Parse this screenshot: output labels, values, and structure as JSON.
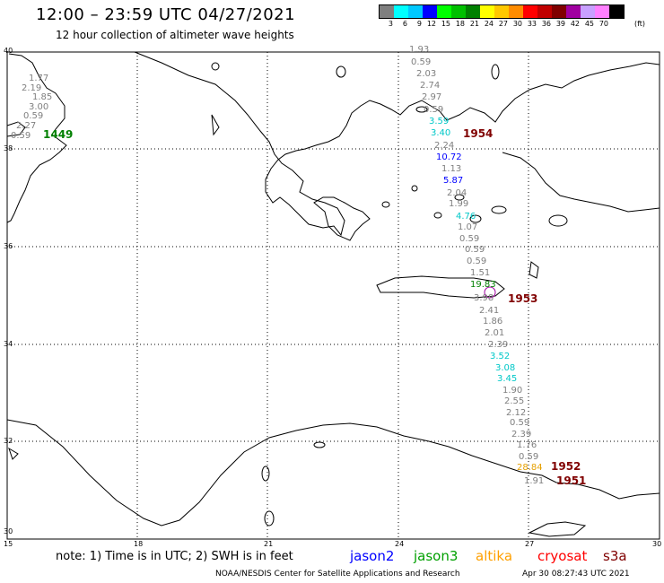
{
  "title": "12:00 – 23:59 UTC 04/27/2021",
  "subtitle": "12 hour collection of altimeter wave heights",
  "legend": {
    "unit": "(ft)",
    "swatches": [
      {
        "label": "3",
        "color": "#7f7f7f"
      },
      {
        "label": "6",
        "color": "#00ffff"
      },
      {
        "label": "9",
        "color": "#00c8ff"
      },
      {
        "label": "12",
        "color": "#0000ff"
      },
      {
        "label": "15",
        "color": "#00ff00"
      },
      {
        "label": "18",
        "color": "#00c000"
      },
      {
        "label": "21",
        "color": "#008000"
      },
      {
        "label": "24",
        "color": "#ffff00"
      },
      {
        "label": "27",
        "color": "#ffc800"
      },
      {
        "label": "30",
        "color": "#ff8c00"
      },
      {
        "label": "33",
        "color": "#ff0000"
      },
      {
        "label": "36",
        "color": "#c00000"
      },
      {
        "label": "39",
        "color": "#800000"
      },
      {
        "label": "42",
        "color": "#a000a0"
      },
      {
        "label": "45",
        "color": "#c8a0ff"
      },
      {
        "label": "70",
        "color": "#ff80ff"
      },
      {
        "label": "",
        "color": "#000000"
      }
    ]
  },
  "map": {
    "lat_labels": [
      "40",
      "38",
      "36",
      "34",
      "32",
      "30"
    ],
    "lon_labels": [
      "15",
      "18",
      "21",
      "24",
      "27",
      "30"
    ]
  },
  "track_west": {
    "values": [
      {
        "text": "1.77",
        "color": "#7f7f7f"
      },
      {
        "text": "2.19",
        "color": "#7f7f7f"
      },
      {
        "text": "1.85",
        "color": "#7f7f7f"
      },
      {
        "text": "3.00",
        "color": "#7f7f7f"
      },
      {
        "text": "0.59",
        "color": "#7f7f7f"
      },
      {
        "text": "2.27",
        "color": "#7f7f7f"
      },
      {
        "text": "0.59",
        "color": "#7f7f7f"
      }
    ],
    "time_label": {
      "text": "1449",
      "color": "#008000"
    }
  },
  "track_east": {
    "values": [
      {
        "text": "1.93",
        "color": "#7f7f7f"
      },
      {
        "text": "0.59",
        "color": "#7f7f7f"
      },
      {
        "text": "2.03",
        "color": "#7f7f7f"
      },
      {
        "text": "2.74",
        "color": "#7f7f7f"
      },
      {
        "text": "2.97",
        "color": "#7f7f7f"
      },
      {
        "text": "0.59",
        "color": "#7f7f7f"
      },
      {
        "text": "3.59",
        "color": "#00c8c8"
      },
      {
        "text": "3.40",
        "color": "#00c8c8"
      },
      {
        "text": "2.24",
        "color": "#7f7f7f"
      },
      {
        "text": "10.72",
        "color": "#0000ff"
      },
      {
        "text": "1.13",
        "color": "#7f7f7f"
      },
      {
        "text": "5.87",
        "color": "#0000ff"
      },
      {
        "text": "2.04",
        "color": "#7f7f7f"
      },
      {
        "text": "1.99",
        "color": "#7f7f7f"
      },
      {
        "text": "4.76",
        "color": "#00c8c8"
      },
      {
        "text": "1.07",
        "color": "#7f7f7f"
      },
      {
        "text": "0.59",
        "color": "#7f7f7f"
      },
      {
        "text": "0.59",
        "color": "#7f7f7f"
      },
      {
        "text": "0.59",
        "color": "#7f7f7f"
      },
      {
        "text": "1.51",
        "color": "#7f7f7f"
      },
      {
        "text": "19.83",
        "color": "#008000"
      },
      {
        "text": "3.98",
        "color": "#7f7f7f"
      },
      {
        "text": "2.41",
        "color": "#7f7f7f"
      },
      {
        "text": "1.86",
        "color": "#7f7f7f"
      },
      {
        "text": "2.01",
        "color": "#7f7f7f"
      },
      {
        "text": "2.39",
        "color": "#7f7f7f"
      },
      {
        "text": "3.52",
        "color": "#00c8c8"
      },
      {
        "text": "3.08",
        "color": "#00c8c8"
      },
      {
        "text": "3.45",
        "color": "#00c8c8"
      },
      {
        "text": "1.90",
        "color": "#7f7f7f"
      },
      {
        "text": "2.55",
        "color": "#7f7f7f"
      },
      {
        "text": "2.12",
        "color": "#7f7f7f"
      },
      {
        "text": "0.59",
        "color": "#7f7f7f"
      },
      {
        "text": "2.39",
        "color": "#7f7f7f"
      },
      {
        "text": "1.76",
        "color": "#7f7f7f"
      },
      {
        "text": "0.59",
        "color": "#7f7f7f"
      },
      {
        "text": "28.84",
        "color": "#e6a000"
      },
      {
        "text": "1.91",
        "color": "#7f7f7f"
      }
    ],
    "time_labels": [
      {
        "text": "1954",
        "color": "#800000"
      },
      {
        "text": "1953",
        "color": "#800000"
      },
      {
        "text": "1952",
        "color": "#800000"
      },
      {
        "text": "1951",
        "color": "#800000"
      }
    ]
  },
  "note": "note: 1) Time is in UTC; 2) SWH is in feet",
  "satellites": [
    {
      "name": "jason2",
      "color": "#0000ff"
    },
    {
      "name": "jason3",
      "color": "#00a000"
    },
    {
      "name": "altika",
      "color": "#ffa000"
    },
    {
      "name": "cryosat",
      "color": "#ff0000"
    },
    {
      "name": "s3a",
      "color": "#800000"
    }
  ],
  "footer": {
    "credit": "NOAA/NESDIS Center for Satellite Applications and Research",
    "timestamp": "Apr 30 08:27:43 UTC 2021"
  }
}
